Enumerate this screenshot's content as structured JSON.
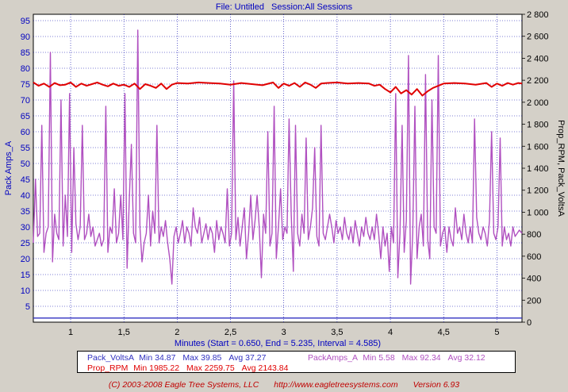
{
  "header": {
    "file": "File: Untitled",
    "session": "Session:All Sessions"
  },
  "chart_data": {
    "type": "line",
    "xlabel": "Minutes (Start = 0.650,  End = 5.235,  Interval =  4.585)",
    "xlim": [
      0.65,
      5.235
    ],
    "x_ticks": [
      "1",
      "1,5",
      "2",
      "2,5",
      "3",
      "3,5",
      "4",
      "4,5",
      "5"
    ],
    "x_tick_values": [
      1,
      1.5,
      2,
      2.5,
      3,
      3.5,
      4,
      4.5,
      5
    ],
    "ylabel_left": "Pack Amps_A",
    "ylim_left": [
      0,
      97
    ],
    "y_ticks_left": [
      5,
      10,
      15,
      20,
      25,
      30,
      35,
      40,
      45,
      50,
      55,
      60,
      65,
      70,
      75,
      80,
      85,
      90,
      95
    ],
    "ylabel_right": "Prop_RPM, Pack_VoltsA",
    "ylim_right": [
      0,
      2800
    ],
    "y_ticks_right": [
      "0",
      "200",
      "400",
      "600",
      "800",
      "1 000",
      "1 200",
      "1 400",
      "1 600",
      "1 800",
      "2 000",
      "2 200",
      "2 400",
      "2 600",
      "2 800"
    ],
    "y_tick_values_right": [
      0,
      200,
      400,
      600,
      800,
      1000,
      1200,
      1400,
      1600,
      1800,
      2000,
      2200,
      2400,
      2600,
      2800
    ],
    "grid": true,
    "series": [
      {
        "name": "Pack_VoltsA",
        "axis": "right",
        "color": "#3030c0",
        "min": "34.87",
        "max": "39.85",
        "avg": "37.27",
        "x": [
          0.65,
          5.235
        ],
        "values": [
          37.3,
          37.3
        ]
      },
      {
        "name": "Prop_RPM",
        "axis": "right",
        "color": "#e00000",
        "min": "1985.22",
        "max": "2259.75",
        "avg": "2143.84",
        "x": [
          0.65,
          0.7,
          0.75,
          0.8,
          0.85,
          0.9,
          0.95,
          1.0,
          1.05,
          1.1,
          1.15,
          1.2,
          1.25,
          1.3,
          1.35,
          1.4,
          1.45,
          1.5,
          1.55,
          1.6,
          1.65,
          1.7,
          1.75,
          1.8,
          1.85,
          1.9,
          1.95,
          2.0,
          2.1,
          2.2,
          2.3,
          2.4,
          2.5,
          2.6,
          2.7,
          2.8,
          2.9,
          2.95,
          3.0,
          3.05,
          3.1,
          3.15,
          3.2,
          3.25,
          3.3,
          3.35,
          3.4,
          3.5,
          3.6,
          3.7,
          3.8,
          3.85,
          3.9,
          3.95,
          4.0,
          4.05,
          4.1,
          4.15,
          4.2,
          4.25,
          4.3,
          4.35,
          4.4,
          4.5,
          4.6,
          4.7,
          4.8,
          4.9,
          4.95,
          5.0,
          5.05,
          5.1,
          5.15,
          5.2,
          5.235
        ],
        "values": [
          2180,
          2150,
          2170,
          2140,
          2175,
          2155,
          2160,
          2180,
          2140,
          2170,
          2150,
          2165,
          2180,
          2160,
          2145,
          2170,
          2150,
          2160,
          2140,
          2170,
          2120,
          2165,
          2150,
          2130,
          2170,
          2120,
          2160,
          2175,
          2170,
          2180,
          2175,
          2170,
          2160,
          2175,
          2165,
          2155,
          2180,
          2130,
          2170,
          2150,
          2175,
          2140,
          2180,
          2160,
          2130,
          2170,
          2175,
          2180,
          2170,
          2175,
          2170,
          2150,
          2160,
          2120,
          2090,
          2140,
          2080,
          2110,
          2070,
          2120,
          2060,
          2100,
          2130,
          2170,
          2175,
          2170,
          2160,
          2175,
          2140,
          2170,
          2150,
          2175,
          2160,
          2175,
          2170
        ]
      },
      {
        "name": "PackAmps_A",
        "axis": "left",
        "color": "#b050c0",
        "min": "5.58",
        "max": "92.34",
        "avg": "32.12",
        "x": [
          0.65,
          0.67,
          0.69,
          0.71,
          0.73,
          0.75,
          0.77,
          0.79,
          0.81,
          0.83,
          0.85,
          0.87,
          0.89,
          0.91,
          0.93,
          0.95,
          0.97,
          0.99,
          1.01,
          1.03,
          1.05,
          1.07,
          1.09,
          1.11,
          1.13,
          1.15,
          1.17,
          1.19,
          1.21,
          1.23,
          1.25,
          1.27,
          1.29,
          1.31,
          1.33,
          1.35,
          1.37,
          1.39,
          1.41,
          1.43,
          1.45,
          1.47,
          1.49,
          1.51,
          1.53,
          1.55,
          1.57,
          1.59,
          1.61,
          1.63,
          1.65,
          1.67,
          1.69,
          1.71,
          1.73,
          1.75,
          1.77,
          1.79,
          1.81,
          1.83,
          1.85,
          1.87,
          1.89,
          1.91,
          1.93,
          1.95,
          1.97,
          1.99,
          2.01,
          2.03,
          2.05,
          2.07,
          2.09,
          2.11,
          2.13,
          2.15,
          2.17,
          2.19,
          2.21,
          2.23,
          2.25,
          2.27,
          2.29,
          2.31,
          2.33,
          2.35,
          2.37,
          2.39,
          2.41,
          2.43,
          2.45,
          2.47,
          2.49,
          2.51,
          2.53,
          2.55,
          2.57,
          2.59,
          2.61,
          2.63,
          2.65,
          2.67,
          2.69,
          2.71,
          2.73,
          2.75,
          2.77,
          2.79,
          2.81,
          2.83,
          2.85,
          2.87,
          2.89,
          2.91,
          2.93,
          2.95,
          2.97,
          2.99,
          3.01,
          3.03,
          3.05,
          3.07,
          3.09,
          3.11,
          3.13,
          3.15,
          3.17,
          3.19,
          3.21,
          3.23,
          3.25,
          3.27,
          3.29,
          3.31,
          3.33,
          3.35,
          3.37,
          3.39,
          3.41,
          3.43,
          3.45,
          3.47,
          3.49,
          3.51,
          3.53,
          3.55,
          3.57,
          3.59,
          3.61,
          3.63,
          3.65,
          3.67,
          3.69,
          3.71,
          3.73,
          3.75,
          3.77,
          3.79,
          3.81,
          3.83,
          3.85,
          3.87,
          3.89,
          3.91,
          3.93,
          3.95,
          3.97,
          3.99,
          4.01,
          4.03,
          4.05,
          4.07,
          4.09,
          4.11,
          4.13,
          4.15,
          4.17,
          4.19,
          4.21,
          4.23,
          4.25,
          4.27,
          4.29,
          4.31,
          4.33,
          4.35,
          4.37,
          4.39,
          4.41,
          4.43,
          4.45,
          4.47,
          4.49,
          4.51,
          4.53,
          4.55,
          4.57,
          4.59,
          4.61,
          4.63,
          4.65,
          4.67,
          4.69,
          4.71,
          4.73,
          4.75,
          4.77,
          4.79,
          4.81,
          4.83,
          4.85,
          4.87,
          4.89,
          4.91,
          4.93,
          4.95,
          4.97,
          4.99,
          5.01,
          5.03,
          5.05,
          5.07,
          5.09,
          5.11,
          5.13,
          5.15,
          5.17,
          5.19,
          5.21,
          5.235
        ],
        "values": [
          25,
          45,
          27,
          28,
          62,
          22,
          28,
          30,
          85,
          19,
          34,
          28,
          26,
          70,
          24,
          40,
          27,
          72,
          22,
          55,
          31,
          26,
          30,
          62,
          26,
          28,
          34,
          27,
          30,
          24,
          26,
          28,
          24,
          26,
          68,
          22,
          30,
          28,
          42,
          25,
          28,
          40,
          26,
          72,
          17,
          38,
          56,
          28,
          25,
          92,
          30,
          19,
          25,
          28,
          40,
          24,
          35,
          28,
          62,
          25,
          30,
          27,
          32,
          25,
          20,
          12,
          27,
          30,
          25,
          28,
          32,
          25,
          30,
          28,
          24,
          36,
          30,
          28,
          33,
          25,
          28,
          31,
          26,
          30,
          28,
          22,
          32,
          26,
          30,
          28,
          25,
          42,
          24,
          28,
          76,
          26,
          33,
          24,
          30,
          36,
          20,
          28,
          40,
          26,
          32,
          40,
          30,
          14,
          34,
          28,
          60,
          24,
          28,
          68,
          20,
          30,
          42,
          26,
          30,
          28,
          64,
          34,
          16,
          62,
          28,
          24,
          34,
          28,
          58,
          26,
          30,
          36,
          55,
          27,
          24,
          62,
          28,
          26,
          30,
          34,
          30,
          25,
          32,
          28,
          30,
          26,
          33,
          28,
          26,
          30,
          25,
          32,
          28,
          24,
          30,
          27,
          33,
          28,
          26,
          30,
          26,
          34,
          28,
          20,
          30,
          24,
          28,
          16,
          30,
          25,
          72,
          14,
          28,
          62,
          22,
          32,
          84,
          12,
          28,
          68,
          20,
          30,
          34,
          24,
          78,
          26,
          20,
          70,
          30,
          28,
          84,
          24,
          28,
          30,
          22,
          30,
          26,
          24,
          36,
          28,
          30,
          26,
          34,
          28,
          25,
          30,
          25,
          64,
          33,
          28,
          26,
          30,
          28,
          24,
          32,
          60,
          28,
          26,
          30,
          58,
          24,
          30,
          26,
          28,
          24,
          30,
          27,
          28,
          29,
          28
        ]
      }
    ],
    "legend_layout": "bottom, two rows"
  },
  "footer": {
    "copyright": "(C) 2003-2008 Eagle Tree Systems, LLC",
    "url": "http://www.eagletreesystems.com",
    "version": "Version 6.93"
  },
  "colors": {
    "background": "#d4d0c8",
    "plot_background": "#ffffff",
    "grid": "#0000aa",
    "header_text": "#0000c0",
    "footer_text": "#c00000"
  }
}
